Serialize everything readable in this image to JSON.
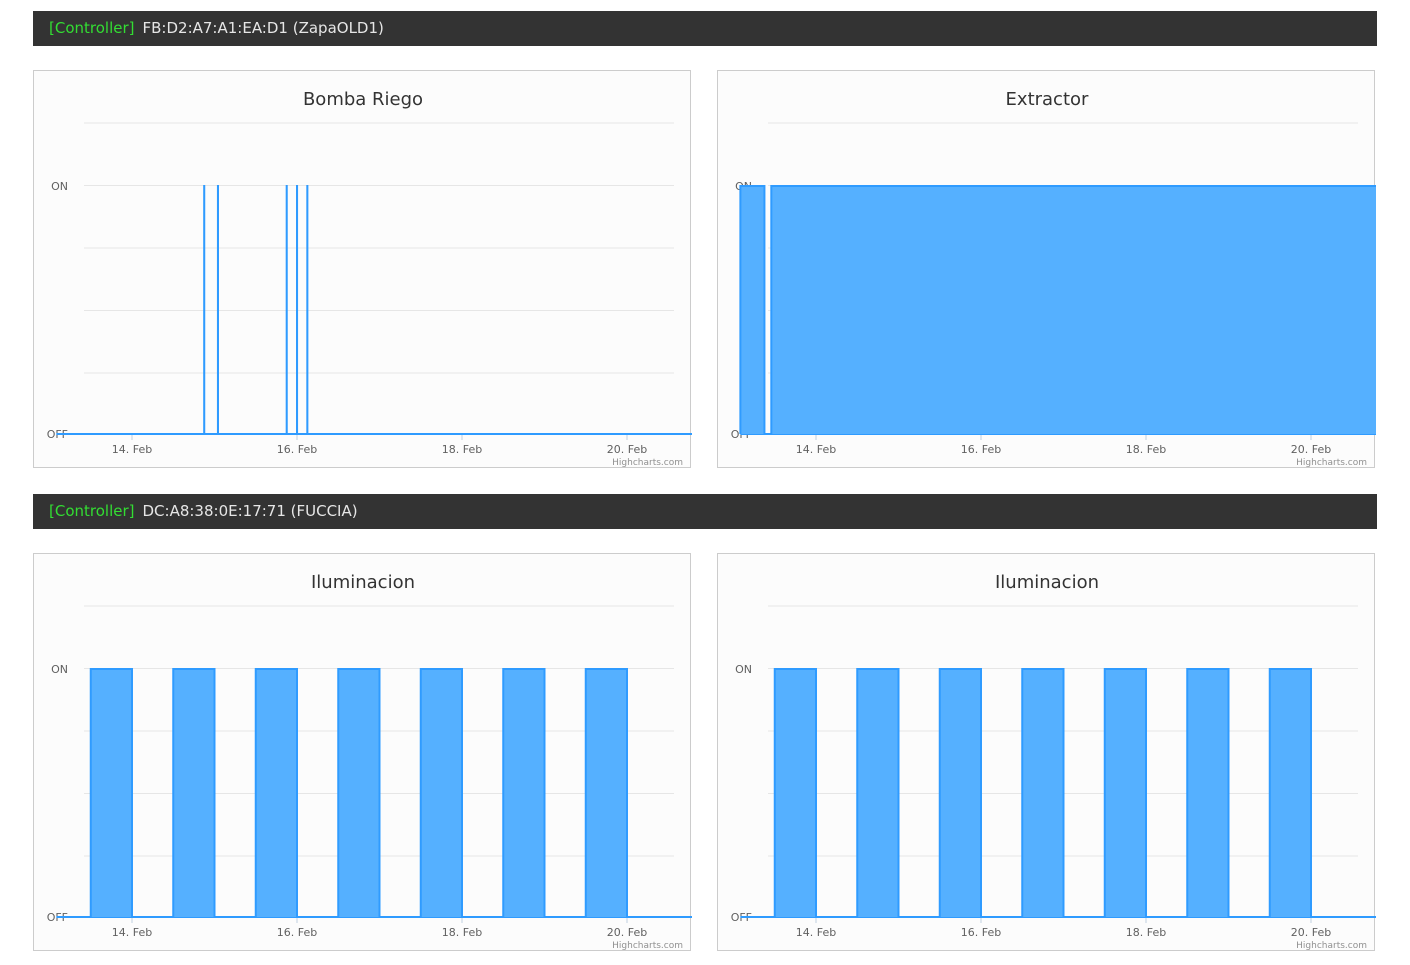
{
  "controllers": [
    {
      "tag": "[Controller]",
      "name": "FB:D2:A7:A1:EA:D1 (ZapaOLD1)"
    },
    {
      "tag": "[Controller]",
      "name": "DC:A8:38:0E:17:71 (FUCCIA)"
    }
  ],
  "credits": "Highcharts.com",
  "colors": {
    "series": "#2f9bff",
    "fill": "#55b0ff",
    "grid": "#e6e6e6"
  },
  "chart_data": [
    {
      "type": "area",
      "title": "Bomba Riego",
      "y_categories": [
        "OFF",
        "ON"
      ],
      "x_ticks": [
        "14. Feb",
        "16. Feb",
        "18. Feb",
        "20. Feb"
      ],
      "xlim": [
        "2021-02-13",
        "2021-02-21"
      ],
      "ylim": [
        0,
        1
      ],
      "on_intervals": [
        [
          "2021-02-14T21:00",
          "2021-02-14T21:01"
        ],
        [
          "2021-02-15T01:00",
          "2021-02-15T01:01"
        ],
        [
          "2021-02-15T21:00",
          "2021-02-15T21:01"
        ],
        [
          "2021-02-16T00:00",
          "2021-02-16T00:01"
        ],
        [
          "2021-02-16T03:00",
          "2021-02-16T03:01"
        ]
      ],
      "series_start": "2021-02-13T02:00",
      "series_end": "2021-02-20T23:00"
    },
    {
      "type": "area",
      "title": "Extractor",
      "y_categories": [
        "OFF",
        "ON"
      ],
      "x_ticks": [
        "14. Feb",
        "16. Feb",
        "18. Feb",
        "20. Feb"
      ],
      "xlim": [
        "2021-02-13",
        "2021-02-21"
      ],
      "ylim": [
        0,
        1
      ],
      "on_intervals": [
        [
          "2021-02-13T02:00",
          "2021-02-13T09:00"
        ],
        [
          "2021-02-13T11:00",
          "2021-02-20T23:00"
        ]
      ],
      "series_start": "2021-02-13T02:00",
      "series_end": "2021-02-20T23:00"
    },
    {
      "type": "area",
      "title": "Iluminacion",
      "y_categories": [
        "OFF",
        "ON"
      ],
      "x_ticks": [
        "14. Feb",
        "16. Feb",
        "18. Feb",
        "20. Feb"
      ],
      "xlim": [
        "2021-02-13",
        "2021-02-21"
      ],
      "ylim": [
        0,
        1
      ],
      "on_intervals": [
        [
          "2021-02-13T12:00",
          "2021-02-14T00:00"
        ],
        [
          "2021-02-14T12:00",
          "2021-02-15T00:00"
        ],
        [
          "2021-02-15T12:00",
          "2021-02-16T00:00"
        ],
        [
          "2021-02-16T12:00",
          "2021-02-17T00:00"
        ],
        [
          "2021-02-17T12:00",
          "2021-02-18T00:00"
        ],
        [
          "2021-02-18T12:00",
          "2021-02-19T00:00"
        ],
        [
          "2021-02-19T12:00",
          "2021-02-20T00:00"
        ]
      ],
      "series_start": "2021-02-13T02:00",
      "series_end": "2021-02-20T23:00"
    },
    {
      "type": "area",
      "title": "Iluminacion",
      "y_categories": [
        "OFF",
        "ON"
      ],
      "x_ticks": [
        "14. Feb",
        "16. Feb",
        "18. Feb",
        "20. Feb"
      ],
      "xlim": [
        "2021-02-13",
        "2021-02-21"
      ],
      "ylim": [
        0,
        1
      ],
      "on_intervals": [
        [
          "2021-02-13T12:00",
          "2021-02-14T00:00"
        ],
        [
          "2021-02-14T12:00",
          "2021-02-15T00:00"
        ],
        [
          "2021-02-15T12:00",
          "2021-02-16T00:00"
        ],
        [
          "2021-02-16T12:00",
          "2021-02-17T00:00"
        ],
        [
          "2021-02-17T12:00",
          "2021-02-18T00:00"
        ],
        [
          "2021-02-18T12:00",
          "2021-02-19T00:00"
        ],
        [
          "2021-02-19T12:00",
          "2021-02-20T00:00"
        ]
      ],
      "series_start": "2021-02-13T02:00",
      "series_end": "2021-02-20T23:00"
    }
  ]
}
